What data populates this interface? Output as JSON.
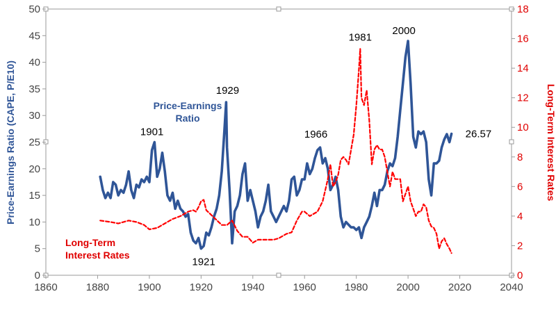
{
  "chart_data": {
    "type": "line",
    "xlim": [
      1860,
      2040
    ],
    "x_ticks": [
      "1860",
      "1880",
      "1900",
      "1920",
      "1940",
      "1960",
      "1980",
      "2000",
      "2020",
      "2040"
    ],
    "y_left": {
      "label": "Price-Earnings Ratio (CAPE, P/E10)",
      "lim": [
        0,
        50
      ],
      "ticks": [
        "0",
        "5",
        "10",
        "15",
        "20",
        "25",
        "30",
        "35",
        "40",
        "45",
        "50"
      ]
    },
    "y_right": {
      "label": "Long-Term Interest Rates",
      "lim": [
        0,
        18
      ],
      "ticks": [
        "0",
        "2",
        "4",
        "6",
        "8",
        "10",
        "12",
        "14",
        "16",
        "18"
      ]
    },
    "series": [
      {
        "name": "Price-Earnings Ratio",
        "axis": "left",
        "color": "#2f5597",
        "style": "solid",
        "points": [
          [
            1881,
            18.5
          ],
          [
            1882,
            16
          ],
          [
            1883,
            14.5
          ],
          [
            1884,
            15.5
          ],
          [
            1885,
            14.5
          ],
          [
            1886,
            17.5
          ],
          [
            1887,
            17
          ],
          [
            1888,
            15
          ],
          [
            1889,
            16
          ],
          [
            1890,
            15.5
          ],
          [
            1891,
            17
          ],
          [
            1892,
            19.5
          ],
          [
            1893,
            16
          ],
          [
            1894,
            14.5
          ],
          [
            1895,
            17
          ],
          [
            1896,
            16.5
          ],
          [
            1897,
            18
          ],
          [
            1898,
            17.5
          ],
          [
            1899,
            18.5
          ],
          [
            1900,
            17.5
          ],
          [
            1901,
            23.5
          ],
          [
            1902,
            25
          ],
          [
            1903,
            18.5
          ],
          [
            1904,
            20
          ],
          [
            1905,
            23
          ],
          [
            1906,
            19.5
          ],
          [
            1907,
            15
          ],
          [
            1908,
            14
          ],
          [
            1909,
            15.5
          ],
          [
            1910,
            12.5
          ],
          [
            1911,
            14
          ],
          [
            1912,
            12.5
          ],
          [
            1913,
            12
          ],
          [
            1914,
            11
          ],
          [
            1915,
            11.5
          ],
          [
            1916,
            8
          ],
          [
            1917,
            6.5
          ],
          [
            1918,
            6
          ],
          [
            1919,
            7
          ],
          [
            1920,
            5
          ],
          [
            1921,
            5.5
          ],
          [
            1922,
            8
          ],
          [
            1923,
            7.5
          ],
          [
            1924,
            9
          ],
          [
            1925,
            11
          ],
          [
            1926,
            12.5
          ],
          [
            1927,
            15
          ],
          [
            1928,
            19.5
          ],
          [
            1929,
            27
          ],
          [
            1929.7,
            32.5
          ],
          [
            1930,
            24
          ],
          [
            1931,
            16
          ],
          [
            1932,
            6
          ],
          [
            1933,
            12
          ],
          [
            1934,
            13
          ],
          [
            1935,
            15
          ],
          [
            1936,
            19
          ],
          [
            1937,
            21
          ],
          [
            1938,
            14
          ],
          [
            1939,
            16
          ],
          [
            1940,
            14
          ],
          [
            1941,
            12
          ],
          [
            1942,
            9
          ],
          [
            1943,
            11
          ],
          [
            1944,
            12
          ],
          [
            1945,
            14
          ],
          [
            1946,
            17
          ],
          [
            1947,
            12
          ],
          [
            1948,
            11
          ],
          [
            1949,
            10
          ],
          [
            1950,
            11
          ],
          [
            1951,
            12
          ],
          [
            1952,
            13
          ],
          [
            1953,
            12
          ],
          [
            1954,
            14
          ],
          [
            1955,
            18
          ],
          [
            1956,
            18.5
          ],
          [
            1957,
            15
          ],
          [
            1958,
            16
          ],
          [
            1959,
            18
          ],
          [
            1960,
            18
          ],
          [
            1961,
            21
          ],
          [
            1962,
            19
          ],
          [
            1963,
            20
          ],
          [
            1964,
            22
          ],
          [
            1965,
            23.5
          ],
          [
            1966,
            24
          ],
          [
            1967,
            21
          ],
          [
            1968,
            22
          ],
          [
            1969,
            20
          ],
          [
            1970,
            16
          ],
          [
            1971,
            17
          ],
          [
            1972,
            18.5
          ],
          [
            1973,
            16
          ],
          [
            1974,
            11
          ],
          [
            1975,
            9
          ],
          [
            1976,
            10
          ],
          [
            1977,
            9.5
          ],
          [
            1978,
            9
          ],
          [
            1979,
            9
          ],
          [
            1980,
            8.5
          ],
          [
            1981,
            9
          ],
          [
            1982,
            7
          ],
          [
            1983,
            9
          ],
          [
            1984,
            10
          ],
          [
            1985,
            11
          ],
          [
            1986,
            13
          ],
          [
            1987,
            15.5
          ],
          [
            1988,
            13
          ],
          [
            1989,
            16
          ],
          [
            1990,
            16
          ],
          [
            1991,
            17
          ],
          [
            1992,
            19.5
          ],
          [
            1993,
            21
          ],
          [
            1994,
            20.5
          ],
          [
            1995,
            22
          ],
          [
            1996,
            26
          ],
          [
            1997,
            31
          ],
          [
            1998,
            36
          ],
          [
            1999,
            41
          ],
          [
            2000,
            44
          ],
          [
            2001,
            36
          ],
          [
            2002,
            26
          ],
          [
            2003,
            24
          ],
          [
            2004,
            27
          ],
          [
            2005,
            26.5
          ],
          [
            2006,
            27
          ],
          [
            2007,
            25
          ],
          [
            2008,
            18
          ],
          [
            2009,
            15
          ],
          [
            2010,
            21
          ],
          [
            2011,
            21
          ],
          [
            2012,
            21.5
          ],
          [
            2013,
            24
          ],
          [
            2014,
            25.5
          ],
          [
            2015,
            26.5
          ],
          [
            2016,
            25
          ],
          [
            2016.8,
            26.57
          ]
        ]
      },
      {
        "name": "Long-Term Interest Rates",
        "axis": "right",
        "color": "#ff0000",
        "style": "dashed",
        "points": [
          [
            1881,
            3.7
          ],
          [
            1885,
            3.6
          ],
          [
            1888,
            3.5
          ],
          [
            1890,
            3.6
          ],
          [
            1892,
            3.7
          ],
          [
            1895,
            3.6
          ],
          [
            1898,
            3.4
          ],
          [
            1900,
            3.1
          ],
          [
            1903,
            3.2
          ],
          [
            1906,
            3.5
          ],
          [
            1909,
            3.8
          ],
          [
            1912,
            4.0
          ],
          [
            1915,
            4.3
          ],
          [
            1917,
            4.4
          ],
          [
            1918,
            4.3
          ],
          [
            1919,
            4.6
          ],
          [
            1920,
            5.0
          ],
          [
            1921,
            5.1
          ],
          [
            1922,
            4.4
          ],
          [
            1925,
            3.9
          ],
          [
            1928,
            3.4
          ],
          [
            1930,
            3.4
          ],
          [
            1932,
            3.7
          ],
          [
            1934,
            3.0
          ],
          [
            1936,
            2.6
          ],
          [
            1938,
            2.6
          ],
          [
            1940,
            2.2
          ],
          [
            1942,
            2.4
          ],
          [
            1945,
            2.4
          ],
          [
            1948,
            2.4
          ],
          [
            1950,
            2.5
          ],
          [
            1953,
            2.8
          ],
          [
            1955,
            2.9
          ],
          [
            1957,
            3.7
          ],
          [
            1959,
            4.3
          ],
          [
            1960,
            4.3
          ],
          [
            1962,
            4.0
          ],
          [
            1965,
            4.3
          ],
          [
            1967,
            5.0
          ],
          [
            1969,
            6.5
          ],
          [
            1970,
            7.5
          ],
          [
            1971,
            6.0
          ],
          [
            1972,
            6.3
          ],
          [
            1973,
            6.8
          ],
          [
            1974,
            7.8
          ],
          [
            1975,
            8.0
          ],
          [
            1976,
            7.8
          ],
          [
            1977,
            7.5
          ],
          [
            1978,
            8.5
          ],
          [
            1979,
            9.5
          ],
          [
            1980,
            11.5
          ],
          [
            1981,
            13.9
          ],
          [
            1981.5,
            15.3
          ],
          [
            1982,
            12.0
          ],
          [
            1983,
            11.5
          ],
          [
            1984,
            12.5
          ],
          [
            1985,
            10.5
          ],
          [
            1986,
            7.5
          ],
          [
            1987,
            8.5
          ],
          [
            1988,
            8.8
          ],
          [
            1989,
            8.5
          ],
          [
            1990,
            8.5
          ],
          [
            1991,
            8.0
          ],
          [
            1992,
            7.0
          ],
          [
            1993,
            6.0
          ],
          [
            1994,
            7.0
          ],
          [
            1995,
            6.5
          ],
          [
            1996,
            6.5
          ],
          [
            1997,
            6.5
          ],
          [
            1998,
            5.0
          ],
          [
            1999,
            5.5
          ],
          [
            2000,
            6.0
          ],
          [
            2001,
            5.0
          ],
          [
            2002,
            4.5
          ],
          [
            2003,
            4.0
          ],
          [
            2004,
            4.3
          ],
          [
            2005,
            4.3
          ],
          [
            2006,
            4.8
          ],
          [
            2007,
            4.6
          ],
          [
            2008,
            3.7
          ],
          [
            2009,
            3.3
          ],
          [
            2010,
            3.2
          ],
          [
            2011,
            2.8
          ],
          [
            2012,
            1.8
          ],
          [
            2013,
            2.3
          ],
          [
            2014,
            2.5
          ],
          [
            2015,
            2.1
          ],
          [
            2016,
            1.8
          ],
          [
            2016.8,
            1.5
          ]
        ]
      }
    ],
    "annotations": [
      {
        "text": "1901",
        "x": 1901,
        "y": 25
      },
      {
        "text": "1921",
        "x": 1921,
        "y": 5
      },
      {
        "text": "1929",
        "x": 1929.7,
        "y": 32.5
      },
      {
        "text": "1966",
        "x": 1966,
        "y": 24
      },
      {
        "text": "1981",
        "x": 1981.5,
        "y": 15.3,
        "axis": "right"
      },
      {
        "text": "2000",
        "x": 2000,
        "y": 44
      },
      {
        "text": "26.57",
        "x": 2016.8,
        "y": 26.57
      }
    ],
    "series_labels": {
      "pe_line1": "Price-Earnings",
      "pe_line2": "Ratio",
      "ir_line1": "Long-Term",
      "ir_line2": "Interest Rates"
    },
    "grid": false,
    "legend": "none"
  }
}
